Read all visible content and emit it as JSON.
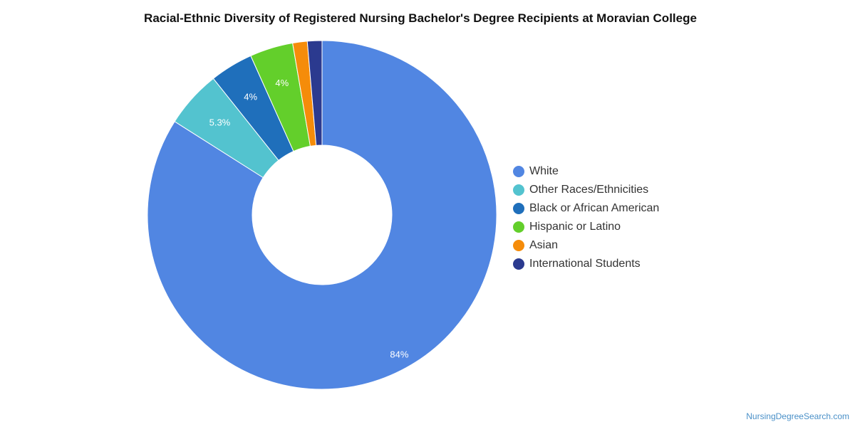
{
  "chart_data": {
    "type": "pie",
    "title": "Racial-Ethnic Diversity of Registered Nursing Bachelor's Degree Recipients at Moravian College",
    "legend_position": "right",
    "series": [
      {
        "name": "White",
        "value": 84.0,
        "label": "84%",
        "color": "#5186e2"
      },
      {
        "name": "Other Races/Ethnicities",
        "value": 5.3,
        "label": "5.3%",
        "color": "#53c3cf"
      },
      {
        "name": "Black or African American",
        "value": 4.0,
        "label": "4%",
        "color": "#1f6fbb"
      },
      {
        "name": "Hispanic or Latino",
        "value": 4.0,
        "label": "4%",
        "color": "#63cf2b"
      },
      {
        "name": "Asian",
        "value": 1.35,
        "label": "",
        "color": "#f58c0a"
      },
      {
        "name": "International Students",
        "value": 1.35,
        "label": "",
        "color": "#2b3a8f"
      }
    ]
  },
  "footer": {
    "source": "NursingDegreeSearch.com"
  }
}
